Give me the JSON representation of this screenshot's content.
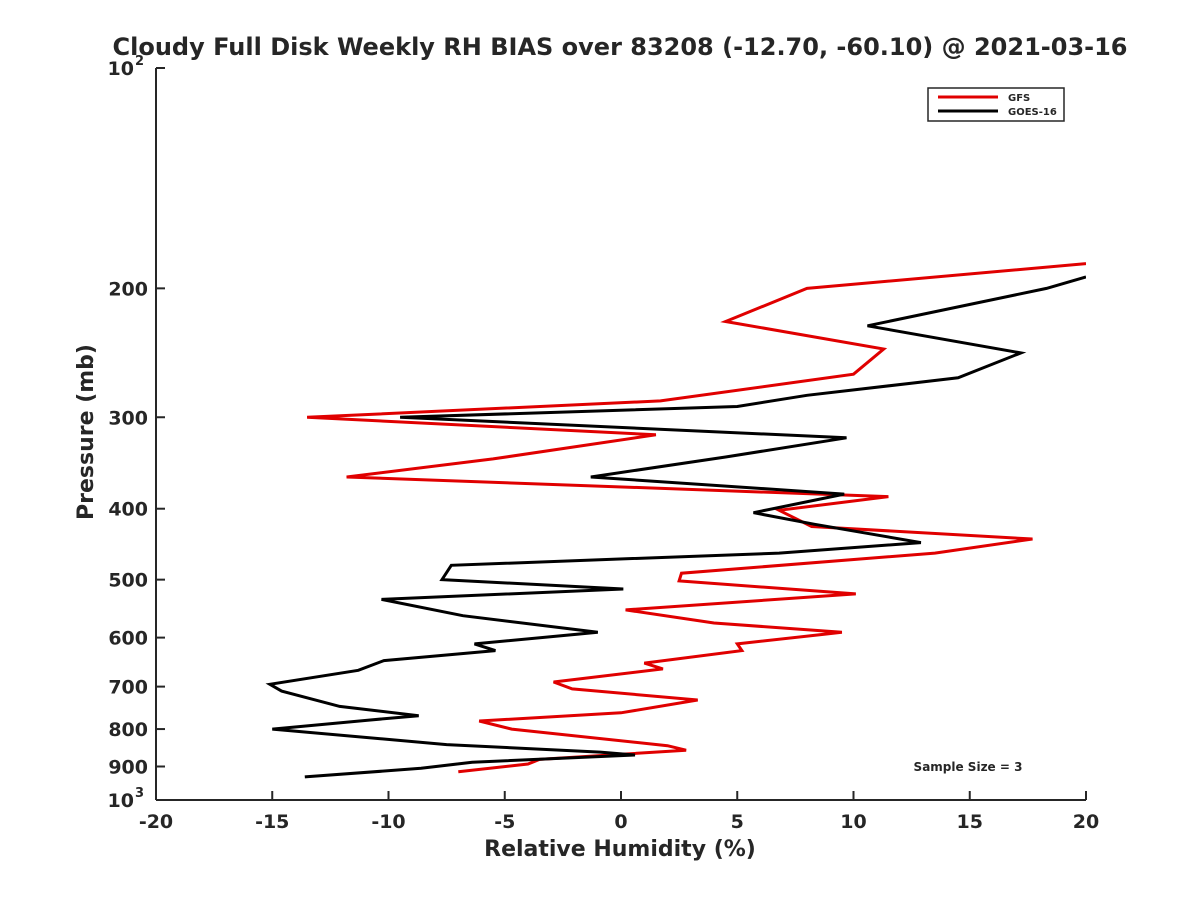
{
  "chart_data": {
    "type": "line",
    "title": "Cloudy Full Disk Weekly RH BIAS over 83208 (-12.70, -60.10) @ 2021-03-16",
    "xlabel": "Relative Humidity (%)",
    "ylabel": "Pressure (mb)",
    "xlim": [
      -20,
      20
    ],
    "ylim": [
      100,
      1000
    ],
    "yscale": "log",
    "yreverse": true,
    "grid": false,
    "legend_position": "top-right",
    "x_ticks": [
      -20,
      -15,
      -10,
      -5,
      0,
      5,
      10,
      15,
      20
    ],
    "x_tick_labels": [
      "-20",
      "-15",
      "-10",
      "-5",
      "0",
      "5",
      "10",
      "15",
      "20"
    ],
    "y_ticks": [
      100,
      200,
      300,
      400,
      500,
      600,
      700,
      800,
      900,
      1000
    ],
    "y_tick_labels": [
      {
        "base": "10",
        "exp": "2"
      },
      {
        "base": "200",
        "exp": ""
      },
      {
        "base": "300",
        "exp": ""
      },
      {
        "base": "400",
        "exp": ""
      },
      {
        "base": "500",
        "exp": ""
      },
      {
        "base": "600",
        "exp": ""
      },
      {
        "base": "700",
        "exp": ""
      },
      {
        "base": "800",
        "exp": ""
      },
      {
        "base": "900",
        "exp": ""
      },
      {
        "base": "10",
        "exp": "3"
      }
    ],
    "annotation": "Sample Size = 3",
    "series": [
      {
        "name": "GFS",
        "color": "#e00000",
        "x": [
          20,
          8,
          4.5,
          11.3,
          10,
          1.7,
          -13.5,
          1.5,
          -5.5,
          -11.8,
          11.5,
          6.8,
          8.2,
          17.7,
          13.5,
          2.6,
          2.5,
          10.1,
          0.2,
          4,
          9.5,
          5,
          5.2,
          1,
          1.8,
          -2.9,
          -2.1,
          3.3,
          0,
          -6.1,
          -4.7,
          2,
          2.8,
          -3.5,
          -4,
          -7
        ],
        "y": [
          185,
          200,
          222,
          242,
          262,
          285,
          300,
          317,
          342,
          362,
          385,
          402,
          423,
          440,
          460,
          490,
          502,
          523,
          550,
          573,
          590,
          612,
          625,
          650,
          662,
          690,
          705,
          730,
          760,
          780,
          800,
          843,
          855,
          880,
          893,
          915
        ]
      },
      {
        "name": "GOES-16",
        "color": "#000000",
        "x": [
          20,
          18.3,
          10.6,
          17.2,
          14.5,
          8,
          5,
          -9.5,
          9.7,
          4.5,
          -1.3,
          9.6,
          5.7,
          8.3,
          12.9,
          6.8,
          -7.3,
          -7.7,
          0.1,
          -10.3,
          -6.8,
          -1,
          -6.3,
          -5.4,
          -10.2,
          -11.3,
          -15.1,
          -14.6,
          -12.1,
          -8.7,
          -10.9,
          -15,
          -7.5,
          -0.9,
          0.6,
          -6.4,
          -8.6,
          -13.6
        ],
        "y": [
          193,
          200,
          225,
          245,
          265,
          280,
          290,
          300,
          320,
          340,
          362,
          382,
          405,
          420,
          445,
          460,
          478,
          500,
          515,
          532,
          560,
          590,
          612,
          625,
          645,
          665,
          695,
          710,
          745,
          767,
          778,
          800,
          840,
          860,
          868,
          888,
          905,
          930
        ]
      }
    ]
  }
}
